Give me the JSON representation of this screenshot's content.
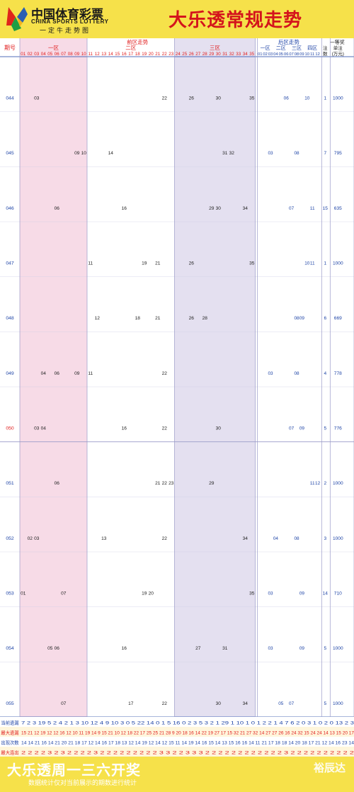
{
  "header": {
    "logo_cn": "中国体育彩票",
    "logo_en": "CHINA SPORTS LOTTERY",
    "logo_sub": "一定牛走势图",
    "title": "大乐透常规走势"
  },
  "footer": {
    "title": "大乐透周一三六开奖",
    "note": "数据统计仅对当前展示的期数进行统计",
    "brand": "裕辰达"
  },
  "colors": {
    "zone1_bg": "#f7dbe7",
    "zone3_bg": "#e4e0f0",
    "front_text": "#222222",
    "front_red": "#e01b1b",
    "back_text": "#1d43a6",
    "hot_red": "#e01b1b",
    "grid": "#cfcfe6"
  },
  "chart_data": {
    "type": "table",
    "headers": {
      "issue": "期号",
      "front_trend": "前区走势",
      "back_trend": "后区走势",
      "first_prize": "一等奖",
      "front_zones": [
        "一区",
        "二区",
        "三区"
      ],
      "back_zones": [
        "一区",
        "二区",
        "三区",
        "四区"
      ],
      "count_col": [
        "注",
        "数"
      ],
      "prize_col": [
        "单注",
        "(万元)"
      ]
    },
    "front_numbers": [
      "01",
      "02",
      "03",
      "04",
      "05",
      "06",
      "07",
      "08",
      "09",
      "10",
      "11",
      "12",
      "13",
      "14",
      "15",
      "16",
      "17",
      "18",
      "19",
      "20",
      "21",
      "22",
      "23",
      "24",
      "25",
      "26",
      "27",
      "28",
      "29",
      "30",
      "31",
      "32",
      "33",
      "34",
      "35"
    ],
    "back_numbers": [
      "01",
      "02",
      "03",
      "04",
      "05",
      "06",
      "07",
      "08",
      "09",
      "10",
      "11",
      "12"
    ],
    "draws": [
      {
        "issue": "044",
        "front": [
          3,
          22,
          26,
          30,
          35
        ],
        "back": [
          6,
          10
        ],
        "count": "1",
        "prize": "1000"
      },
      {
        "issue": "045",
        "front": [
          9,
          10,
          14,
          31,
          32
        ],
        "back": [
          3,
          8
        ],
        "count": "7",
        "prize": "795"
      },
      {
        "issue": "046",
        "front": [
          6,
          16,
          29,
          30,
          34
        ],
        "back": [
          7,
          11
        ],
        "count": "15",
        "prize": "635"
      },
      {
        "issue": "047",
        "front": [
          11,
          19,
          21,
          26,
          35
        ],
        "back": [
          10,
          11
        ],
        "count": "1",
        "prize": "1000"
      },
      {
        "issue": "048",
        "front": [
          12,
          18,
          21,
          26,
          28
        ],
        "back": [
          8,
          9
        ],
        "count": "6",
        "prize": "669"
      },
      {
        "issue": "049",
        "front": [
          4,
          6,
          9,
          11,
          22
        ],
        "back": [
          3,
          8
        ],
        "count": "4",
        "prize": "778"
      },
      {
        "issue": "050",
        "front": [
          3,
          4,
          16,
          22,
          30
        ],
        "back": [
          7,
          9
        ],
        "count": "5",
        "prize": "776"
      },
      {
        "issue": "051",
        "front": [
          6,
          21,
          22,
          23,
          29
        ],
        "back": [
          11,
          12
        ],
        "count": "2",
        "prize": "1000"
      },
      {
        "issue": "052",
        "front": [
          2,
          3,
          13,
          22,
          34
        ],
        "back": [
          4,
          8
        ],
        "count": "3",
        "prize": "1000"
      },
      {
        "issue": "053",
        "front": [
          1,
          7,
          19,
          20,
          35
        ],
        "back": [
          3,
          9
        ],
        "count": "14",
        "prize": "710"
      },
      {
        "issue": "054",
        "front": [
          5,
          6,
          16,
          27,
          31
        ],
        "back": [
          3,
          9
        ],
        "count": "5",
        "prize": "1000"
      },
      {
        "issue": "055",
        "front": [
          7,
          17,
          22,
          30,
          34
        ],
        "back": [
          5,
          7
        ],
        "count": "5",
        "prize": "1000"
      }
    ],
    "stats": [
      {
        "label": "当前遗漏",
        "label_color": "#1d43a6",
        "values": "7 2 3 19 5 2 4 2 1 3 10 12 4 9 10 3 0 5 22 14 0 1 5 16 0 2 3 5 3 2 1 29 1 10 1 0 1 2 2 1 4 7 6 2 0 3 1 0 2 0 13 2 3"
      },
      {
        "label": "最大遗漏",
        "label_color": "#e01b1b",
        "values": "15 21 12 19 12 12 16 12 10 11 19 14 9 15 21 10 12 18 22 17 25 25 21 28 9 20 18 16 14 22 19 27 17 15 32 21 27 32 14 27 27 26 16 24 32 15 24 24 14 13 15 20 17"
      },
      {
        "label": "出现次数",
        "label_color": "#1d43a6",
        "values": "14 14 21 16 14 21 20 21 18 17 12 14 16 17 18 13 12 14 19 12 14 12 15 11 14 19 14 16 15 14 13 15 16 16 14 11 21 17 18 18 14 20 18 17 21 12 14 16 23 14"
      },
      {
        "label": "最大连出",
        "label_color": "#e01b1b",
        "values": "2 2 2 2 3 2 3 2 2 2 2 3 2 2 2 2 2 2 2 2 2 3 3 2 2 3 3 3 2 2 2 2 2 2 2 2 2 2 2 2 3 2 2 2 2 2 2 2 2 2 2"
      }
    ]
  }
}
